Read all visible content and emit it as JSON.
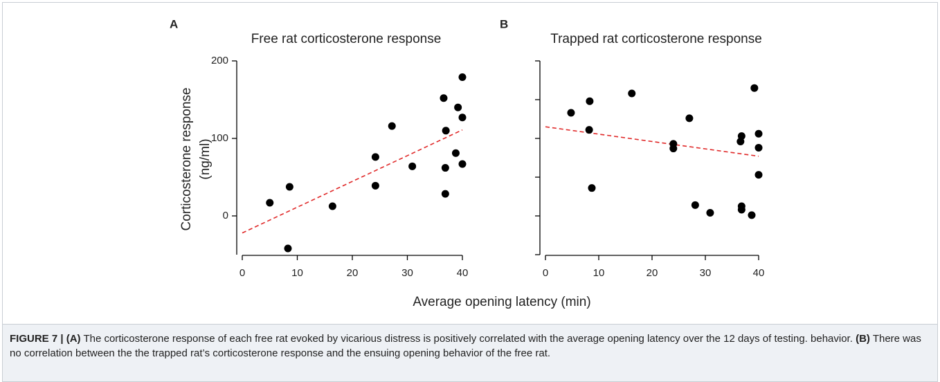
{
  "chart_data": [
    {
      "type": "scatter",
      "panel": "A",
      "title": "Free rat corticosterone response",
      "ylabel": [
        "Corticosterone response",
        "(ng/ml)"
      ],
      "xlim": [
        0,
        40
      ],
      "xticks": [
        0,
        10,
        20,
        30,
        40
      ],
      "ylim": [
        -50,
        200
      ],
      "yticks": [
        0,
        100,
        200
      ],
      "ytick_labels": true,
      "color": "#000000",
      "x": [
        5.0,
        8.6,
        8.3,
        16.4,
        24.2,
        24.2,
        27.2,
        30.9,
        36.6,
        37.0,
        36.9,
        36.9,
        38.8,
        39.2,
        40,
        40,
        40
      ],
      "values": [
        17,
        37.5,
        -42,
        12.5,
        76,
        39,
        116,
        64,
        152,
        110,
        62,
        28.5,
        81,
        140,
        179,
        127,
        67
      ],
      "trend_line": {
        "x": [
          0,
          40
        ],
        "y": [
          -22,
          111
        ],
        "color": "#e02828"
      }
    },
    {
      "type": "scatter",
      "panel": "B",
      "title": "Trapped rat corticosterone response",
      "xlim": [
        0,
        40
      ],
      "xticks": [
        0,
        10,
        20,
        30,
        40
      ],
      "ylim": [
        -50,
        200
      ],
      "yticks": [
        -50,
        0,
        50,
        100,
        150,
        200
      ],
      "ytick_labels": false,
      "color": "#000000",
      "x": [
        4.8,
        8.3,
        8.2,
        8.7,
        16.2,
        24.0,
        24.0,
        27.0,
        28.1,
        30.9,
        36.8,
        36.6,
        36.8,
        36.8,
        38.7,
        39.2,
        40,
        40,
        40
      ],
      "values": [
        133,
        148,
        111,
        36,
        158,
        93,
        87,
        126,
        14,
        4,
        103,
        96,
        12.5,
        8,
        1,
        165,
        106,
        88,
        53
      ],
      "trend_line": {
        "x": [
          0,
          40
        ],
        "y": [
          115,
          77
        ],
        "color": "#e02828"
      }
    }
  ],
  "x_label": "Average opening latency (min)",
  "caption": {
    "figure": "FIGURE 7 |",
    "a_label": "(A)",
    "a_text": "The corticosterone response of each free rat evoked by vicarious distress is positively correlated with the average opening latency over the 12 days of testing. behavior.",
    "b_label": "(B)",
    "b_text": "There was no correlation between the the trapped rat’s corticosterone response and the ensuing opening behavior of the free rat."
  }
}
